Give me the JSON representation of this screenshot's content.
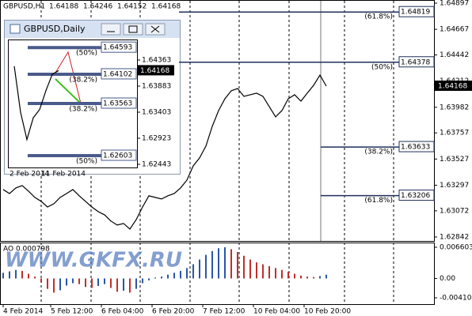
{
  "header": {
    "symbol": "GBPUSD,H1",
    "open": 1.64188,
    "high": 1.64246,
    "low": 1.64152,
    "close": 1.64168
  },
  "watermark": "WWW.GKFX.RU",
  "chart_data": [
    {
      "type": "line",
      "color": "#000000",
      "values": [
        1.63259,
        1.63224,
        1.63273,
        1.63294,
        1.63245,
        1.6319,
        1.63155,
        1.63106,
        1.63134,
        1.6319,
        1.63224,
        1.63259,
        1.63204,
        1.63155,
        1.63106,
        1.63065,
        1.63037,
        1.62982,
        1.62947,
        1.62961,
        1.62912,
        1.62995,
        1.63106,
        1.63204,
        1.6319,
        1.63176,
        1.63204,
        1.63224,
        1.63273,
        1.63342,
        1.63467,
        1.63537,
        1.63641,
        1.63814,
        1.63953,
        1.64057,
        1.64127,
        1.64147,
        1.64078,
        1.64092,
        1.64106,
        1.64078,
        1.63988,
        1.63898,
        1.63953,
        1.64057,
        1.64092,
        1.64036,
        1.64106,
        1.64175,
        1.64265,
        1.64168
      ],
      "ylim": [
        1.62842,
        1.64897
      ],
      "yticks": [
        1.64897,
        1.64667,
        1.64442,
        1.64212,
        1.63982,
        1.63757,
        1.63527,
        1.63297,
        1.63072,
        1.62842
      ],
      "xticks": [
        {
          "value": 0,
          "label": "4 Feb 2014"
        },
        {
          "value": 7.5,
          "label": "5 Feb 12:00"
        },
        {
          "value": 15.5,
          "label": "6 Feb 04:00"
        },
        {
          "value": 23.5,
          "label": "6 Feb 20:00"
        },
        {
          "value": 31.5,
          "label": "7 Feb 12:00"
        },
        {
          "value": 39.5,
          "label": "10 Feb 04:00"
        },
        {
          "value": 47.5,
          "label": "10 Feb 20:00"
        }
      ],
      "levels": [
        {
          "price": 1.64819,
          "text": "(61.8%)"
        },
        {
          "price": 1.64378,
          "text": "(50%)"
        },
        {
          "price": 1.63633,
          "text": "(38.2%)"
        },
        {
          "price": 1.63206,
          "text": "(61.8%)"
        }
      ]
    },
    {
      "type": "bar",
      "title": "AO 0.000798",
      "up_color": "#2a56a6",
      "down_color": "#c0302b",
      "values": [
        0.0012,
        0.0015,
        0.0018,
        0.0016,
        0.001,
        0.0004,
        -0.0008,
        -0.0022,
        -0.003,
        -0.0025,
        -0.0015,
        -0.001,
        -0.0012,
        -0.0018,
        -0.002,
        -0.0016,
        -0.0012,
        -0.002,
        -0.0028,
        -0.0026,
        -0.003,
        -0.0022,
        -0.001,
        -0.0004,
        0.0002,
        0.0004,
        0.0008,
        0.0012,
        0.0016,
        0.0022,
        0.003,
        0.004,
        0.005,
        0.0058,
        0.0064,
        0.0066,
        0.0062,
        0.0056,
        0.0048,
        0.004,
        0.0034,
        0.003,
        0.0026,
        0.0022,
        0.0018,
        0.0014,
        0.001,
        0.0006,
        0.0004,
        0.0003,
        0.0005,
        0.000798
      ],
      "ylim": [
        -0.004103,
        0.006603
      ],
      "yticks": [
        0.006603,
        {
          "value": 0,
          "label": "0.00"
        },
        -0.004103
      ]
    },
    {
      "type": "line",
      "title": "GBPUSD,Daily",
      "color": "#000000",
      "values": [
        1.6425,
        1.634,
        1.629,
        1.633,
        1.6345,
        1.638,
        1.641,
        1.64168
      ],
      "ylim": [
        1.62443,
        1.64363
      ],
      "yticks": [
        1.64363,
        1.63883,
        1.63403,
        1.62923,
        1.62443
      ],
      "xticks": [
        {
          "value": 0,
          "label": "2 Feb 2014"
        },
        {
          "value": 5,
          "label": "11 Feb 2014"
        }
      ],
      "levels": [
        {
          "price": 1.64593,
          "text": "(50%)"
        },
        {
          "price": 1.64102,
          "text": "(38.2%)"
        },
        {
          "price": 1.63563,
          "text": "(38.2%)"
        },
        {
          "price": 1.62603,
          "text": "(50%)"
        }
      ]
    }
  ]
}
